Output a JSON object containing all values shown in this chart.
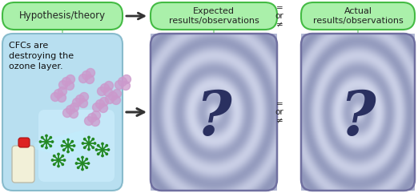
{
  "bg_color": "#ffffff",
  "green_light": "#aaf0aa",
  "green_mid": "#77dd77",
  "green_dark": "#44bb44",
  "bubble1_text": "Hypothesis/theory",
  "bubble2_text": "Expected\nresults/observations",
  "bubble3_text": "Actual\nresults/observations",
  "box1_text": "CFCs are\ndestroying the\nozone layer.",
  "eq_or_neq_top": "=\nor\n≠",
  "eq_or_neq_bot": "=\nor\n≠",
  "question_mark": "?",
  "question_color": "#2a3060",
  "arrow_color": "#333333",
  "fig_width": 5.22,
  "fig_height": 2.41,
  "dpi": 100
}
